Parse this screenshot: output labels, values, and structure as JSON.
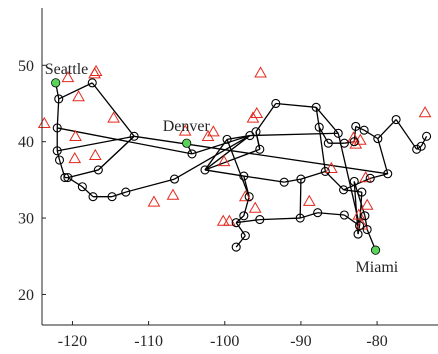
{
  "chart_data": {
    "type": "scatter",
    "title": "",
    "xlabel": "",
    "ylabel": "",
    "xlim": [
      -124,
      -72
    ],
    "ylim": [
      16,
      57.5
    ],
    "x_ticks": [
      -120,
      -110,
      -100,
      -90,
      -80
    ],
    "x_tick_labels": [
      "-120",
      "-110",
      "-100",
      "-90",
      "-80"
    ],
    "y_ticks": [
      20,
      30,
      40,
      50
    ],
    "y_tick_labels": [
      "20",
      "30",
      "40",
      "50"
    ],
    "grid": false,
    "legend": "none",
    "colors": {
      "edge": "#000000",
      "node": "#000000",
      "city": "#5ad35a",
      "triangle": "#e5281c"
    },
    "series": [
      {
        "marker": "circle",
        "points": [
          [
            -121.8,
            45.6
          ],
          [
            -122.0,
            41.8
          ],
          [
            -121.7,
            37.6
          ],
          [
            -121.0,
            35.3
          ],
          [
            -118.7,
            34.1
          ],
          [
            -117.3,
            32.8
          ],
          [
            -114.8,
            32.8
          ],
          [
            -113.0,
            33.4
          ],
          [
            -106.6,
            35.1
          ],
          [
            -104.3,
            38.4
          ],
          [
            -102.6,
            36.3
          ],
          [
            -99.7,
            40.3
          ],
          [
            -95.4,
            39.0
          ],
          [
            -95.9,
            41.3
          ],
          [
            -93.3,
            45.0
          ],
          [
            -88.0,
            44.5
          ],
          [
            -87.6,
            41.9
          ],
          [
            -86.4,
            39.8
          ],
          [
            -84.3,
            39.8
          ],
          [
            -83.0,
            40.0
          ],
          [
            -82.8,
            42.0
          ],
          [
            -81.7,
            41.5
          ],
          [
            -79.9,
            40.4
          ],
          [
            -77.5,
            42.9
          ],
          [
            -74.8,
            39.0
          ],
          [
            -74.2,
            39.4
          ],
          [
            -73.5,
            40.7
          ],
          [
            -78.6,
            35.8
          ],
          [
            -80.9,
            35.2
          ],
          [
            -84.4,
            33.7
          ],
          [
            -86.8,
            36.1
          ],
          [
            -90.0,
            35.1
          ],
          [
            -92.2,
            34.7
          ],
          [
            -97.5,
            35.5
          ],
          [
            -96.8,
            32.8
          ],
          [
            -97.5,
            30.3
          ],
          [
            -98.5,
            29.4
          ],
          [
            -97.3,
            27.7
          ],
          [
            -98.5,
            26.2
          ],
          [
            -95.4,
            29.8
          ],
          [
            -90.1,
            30.0
          ],
          [
            -87.8,
            30.7
          ],
          [
            -84.3,
            30.4
          ],
          [
            -82.3,
            29.0
          ],
          [
            -82.5,
            27.9
          ],
          [
            -81.6,
            30.3
          ],
          [
            -81.3,
            28.5
          ],
          [
            -122.0,
            38.8
          ],
          [
            -120.6,
            35.3
          ],
          [
            -116.6,
            36.3
          ],
          [
            -117.4,
            47.7
          ],
          [
            -111.9,
            40.7
          ],
          [
            -96.7,
            40.8
          ],
          [
            -85.1,
            41.1
          ],
          [
            -83.0,
            34.8
          ],
          [
            -82.0,
            33.4
          ]
        ]
      },
      {
        "marker": "filled-circle",
        "points": [
          [
            -122.2,
            47.7
          ],
          [
            -105.0,
            39.8
          ],
          [
            -80.2,
            25.8
          ]
        ]
      },
      {
        "marker": "triangle",
        "points": [
          [
            -123.7,
            42.4
          ],
          [
            -120.6,
            48.4
          ],
          [
            -119.2,
            45.9
          ],
          [
            -117.1,
            48.9
          ],
          [
            -116.9,
            49.2
          ],
          [
            -119.6,
            40.7
          ],
          [
            -119.7,
            37.8
          ],
          [
            -117.0,
            38.2
          ],
          [
            -114.6,
            43.1
          ],
          [
            -109.3,
            32.1
          ],
          [
            -106.8,
            33.0
          ],
          [
            -105.2,
            41.4
          ],
          [
            -102.2,
            40.7
          ],
          [
            -101.5,
            41.3
          ],
          [
            -100.1,
            37.4
          ],
          [
            -100.2,
            29.6
          ],
          [
            -99.4,
            29.6
          ],
          [
            -97.3,
            32.8
          ],
          [
            -96.0,
            31.3
          ],
          [
            -96.3,
            43.1
          ],
          [
            -95.8,
            43.7
          ],
          [
            -95.3,
            49.0
          ],
          [
            -88.9,
            32.2
          ],
          [
            -86.0,
            36.5
          ],
          [
            -83.1,
            40.5
          ],
          [
            -82.8,
            39.7
          ],
          [
            -82.2,
            40.2
          ],
          [
            -81.5,
            35.3
          ],
          [
            -81.3,
            31.7
          ],
          [
            -82.0,
            29.1
          ],
          [
            -82.4,
            30.4
          ],
          [
            -73.7,
            43.8
          ]
        ]
      }
    ],
    "edges": [
      [
        50,
        51
      ],
      [
        51,
        47
      ],
      [
        51,
        27
      ],
      [
        51,
        49
      ],
      [
        50,
        0
      ],
      [
        0,
        1
      ],
      [
        1,
        47
      ],
      [
        47,
        2
      ],
      [
        2,
        3
      ],
      [
        3,
        48
      ],
      [
        48,
        4
      ],
      [
        4,
        5
      ],
      [
        5,
        6
      ],
      [
        6,
        7
      ],
      [
        7,
        8
      ],
      [
        8,
        52
      ],
      [
        48,
        49
      ],
      [
        49,
        51
      ],
      [
        52,
        9
      ],
      [
        52,
        53
      ],
      [
        52,
        10
      ],
      [
        9,
        1
      ],
      [
        10,
        11
      ],
      [
        10,
        12
      ],
      [
        11,
        52
      ],
      [
        12,
        13
      ],
      [
        13,
        14
      ],
      [
        14,
        15
      ],
      [
        15,
        16
      ],
      [
        16,
        17
      ],
      [
        17,
        18
      ],
      [
        18,
        19
      ],
      [
        19,
        20
      ],
      [
        20,
        21
      ],
      [
        21,
        22
      ],
      [
        22,
        23
      ],
      [
        23,
        24
      ],
      [
        24,
        25
      ],
      [
        25,
        26
      ],
      [
        22,
        27
      ],
      [
        27,
        28
      ],
      [
        28,
        29
      ],
      [
        29,
        30
      ],
      [
        30,
        31
      ],
      [
        31,
        32
      ],
      [
        32,
        33
      ],
      [
        33,
        10
      ],
      [
        11,
        34
      ],
      [
        34,
        35
      ],
      [
        35,
        36
      ],
      [
        36,
        37
      ],
      [
        37,
        38
      ],
      [
        36,
        39
      ],
      [
        39,
        40
      ],
      [
        40,
        41
      ],
      [
        41,
        42
      ],
      [
        42,
        43
      ],
      [
        43,
        44
      ],
      [
        44,
        54
      ],
      [
        54,
        45
      ],
      [
        45,
        46
      ],
      [
        43,
        53
      ],
      [
        29,
        55
      ],
      [
        55,
        43
      ],
      [
        15,
        53
      ],
      [
        16,
        30
      ],
      [
        31,
        40
      ],
      [
        34,
        33
      ],
      [
        13,
        12
      ]
    ],
    "annotations": [
      {
        "text": "Seattle",
        "x": -122.2,
        "y": 47.7
      },
      {
        "text": "Denver",
        "x": -105.0,
        "y": 39.8
      },
      {
        "text": "Miami",
        "x": -80.2,
        "y": 25.8
      }
    ]
  }
}
